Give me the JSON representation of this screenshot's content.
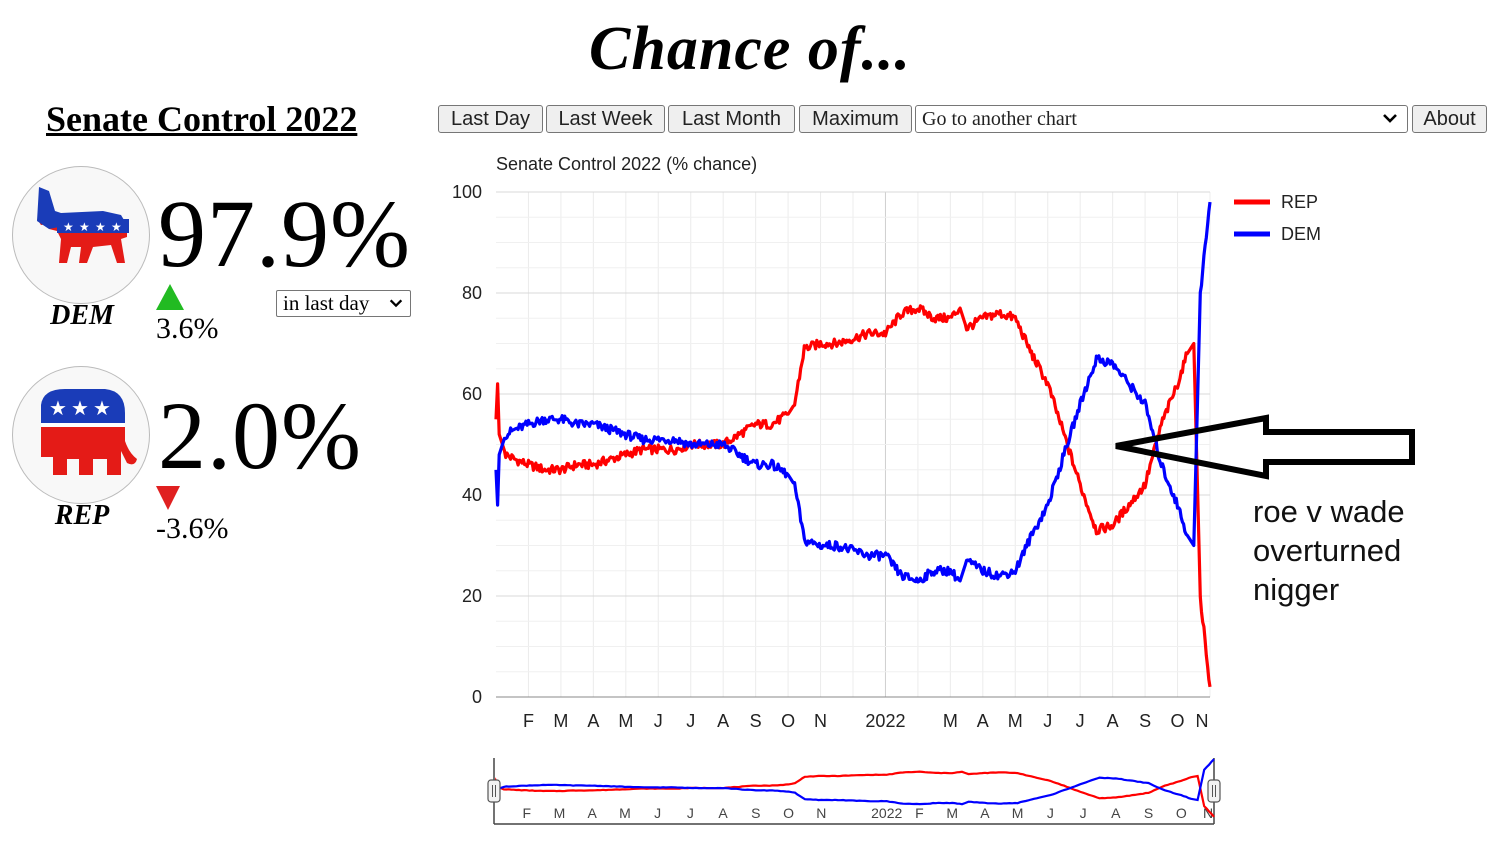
{
  "page": {
    "title": "Chance of..."
  },
  "market": {
    "title": "Senate Control 2022"
  },
  "toolbar": {
    "buttons": [
      "Last Day",
      "Last Week",
      "Last Month",
      "Maximum"
    ],
    "select_value": "Go to another chart",
    "about": "About"
  },
  "parties": {
    "dem": {
      "label": "DEM",
      "percent": "97.9%",
      "change": "3.6%",
      "direction": "up",
      "color": "#1a3cb8"
    },
    "rep": {
      "label": "REP",
      "percent": "2.0%",
      "change": "-3.6%",
      "direction": "down",
      "color": "#e02020"
    }
  },
  "period_select": {
    "value": "in last day"
  },
  "annotation": {
    "lines": [
      "roe v wade",
      "overturned",
      "nigger"
    ]
  },
  "chart_data": {
    "type": "line",
    "title": "Senate Control 2022 (% chance)",
    "ylim": [
      0,
      100
    ],
    "yticks": [
      0,
      20,
      40,
      60,
      80,
      100
    ],
    "grid": true,
    "legend_position": "top-right",
    "x_tick_labels": [
      "F",
      "M",
      "A",
      "M",
      "J",
      "J",
      "A",
      "S",
      "O",
      "N",
      "2022",
      "M",
      "A",
      "M",
      "J",
      "J",
      "A",
      "S",
      "O",
      "N"
    ],
    "navigator_tick_labels": [
      "F",
      "M",
      "A",
      "M",
      "J",
      "J",
      "A",
      "S",
      "O",
      "N",
      "2022",
      "F",
      "M",
      "A",
      "M",
      "J",
      "J",
      "A",
      "S",
      "O",
      "N"
    ],
    "x_unit": "months since January 2021",
    "series": [
      {
        "name": "REP",
        "color": "#ff0000",
        "x": [
          0,
          0.05,
          0.1,
          0.3,
          0.6,
          1.0,
          1.5,
          2.0,
          2.5,
          3.0,
          3.5,
          4.0,
          4.5,
          5.0,
          5.5,
          6.0,
          6.5,
          7.0,
          7.5,
          8.0,
          8.5,
          9.0,
          9.2,
          9.5,
          10.0,
          10.5,
          11.0,
          11.5,
          12.0,
          12.5,
          13.0,
          13.5,
          14.0,
          14.3,
          14.5,
          15.0,
          15.5,
          16.0,
          16.5,
          17.0,
          17.5,
          18.0,
          18.5,
          19.0,
          19.5,
          20.0,
          20.5,
          21.0,
          21.3,
          21.5,
          21.7,
          22.0
        ],
        "y": [
          55,
          62,
          52,
          48,
          47,
          46,
          45,
          45,
          46,
          46,
          47,
          48,
          49,
          49,
          49,
          50,
          50,
          50,
          52,
          54,
          54,
          56,
          58,
          69,
          70,
          70,
          71,
          72,
          72,
          76,
          77,
          75,
          75,
          77,
          73,
          75,
          76,
          75,
          68,
          62,
          52,
          42,
          33,
          34,
          38,
          42,
          54,
          62,
          68,
          70,
          20,
          2
        ]
      },
      {
        "name": "DEM",
        "color": "#0000ff",
        "x": [
          0,
          0.05,
          0.1,
          0.3,
          0.6,
          1.0,
          1.5,
          2.0,
          2.5,
          3.0,
          3.5,
          4.0,
          4.5,
          5.0,
          5.5,
          6.0,
          6.5,
          7.0,
          7.5,
          8.0,
          8.5,
          9.0,
          9.2,
          9.5,
          10.0,
          10.5,
          11.0,
          11.5,
          12.0,
          12.5,
          13.0,
          13.5,
          14.0,
          14.3,
          14.5,
          15.0,
          15.5,
          16.0,
          16.5,
          17.0,
          17.5,
          18.0,
          18.5,
          19.0,
          19.5,
          20.0,
          20.5,
          21.0,
          21.3,
          21.5,
          21.7,
          22.0
        ],
        "y": [
          45,
          38,
          48,
          52,
          53,
          54,
          55,
          55,
          54,
          54,
          53,
          52,
          51,
          51,
          51,
          50,
          50,
          50,
          48,
          46,
          46,
          44,
          42,
          31,
          30,
          30,
          29,
          28,
          28,
          24,
          23,
          25,
          25,
          23,
          27,
          25,
          24,
          25,
          32,
          38,
          48,
          58,
          67,
          66,
          62,
          58,
          46,
          38,
          32,
          30,
          80,
          98
        ]
      }
    ]
  }
}
